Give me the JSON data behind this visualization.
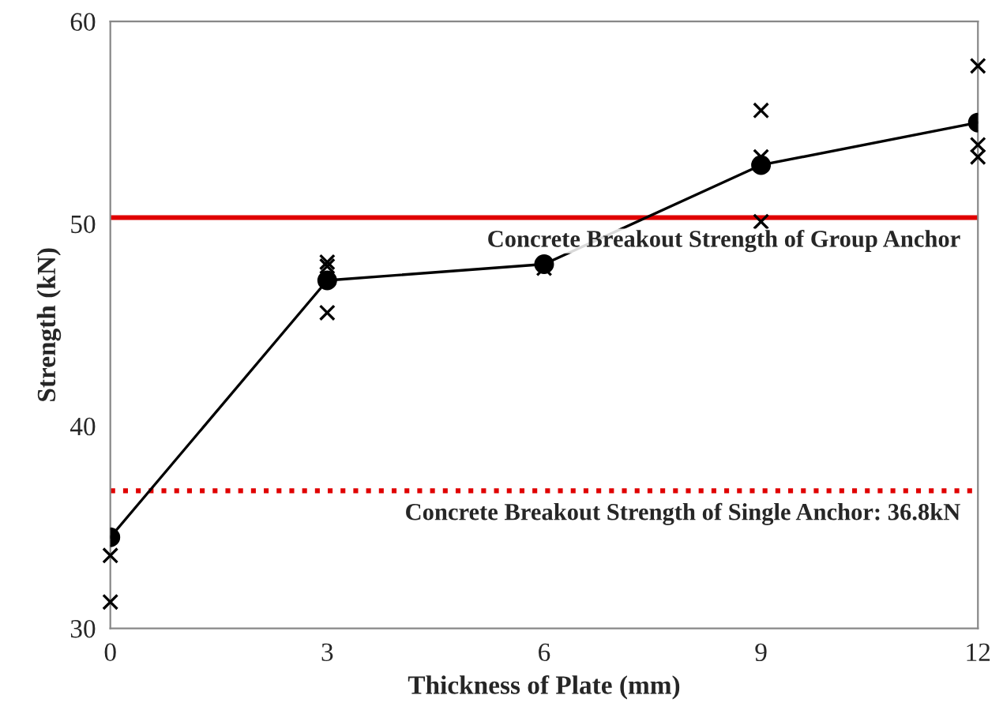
{
  "chart_data": {
    "type": "line",
    "xlabel": "Thickness of Plate (mm)",
    "ylabel": "Strength (kN)",
    "xlim": [
      0,
      12
    ],
    "xticks": [
      0,
      3,
      6,
      9,
      12
    ],
    "ylim": [
      30,
      60
    ],
    "yticks": [
      30,
      40,
      50,
      60
    ],
    "grid": false,
    "legend": false,
    "series": [
      {
        "color": "#000000",
        "marker": "circle",
        "line_style": "solid",
        "x": [
          0,
          3,
          6,
          9,
          12
        ],
        "values": [
          34.5,
          47.2,
          48.0,
          52.9,
          55.0
        ]
      },
      {
        "type": "scatter",
        "color": "#000000",
        "marker": "cross",
        "x": [
          0,
          0,
          3,
          3,
          3,
          6,
          9,
          9,
          9,
          12,
          12,
          12
        ],
        "values": [
          33.6,
          31.3,
          48.1,
          47.9,
          45.6,
          47.8,
          55.6,
          53.3,
          50.1,
          57.8,
          53.9,
          53.3
        ]
      }
    ],
    "ref_lines": [
      {
        "axis": "y",
        "value": 50.3,
        "label": "Concrete Breakout Strength of Group Anchor",
        "color": "#e00000",
        "line_style": "solid"
      },
      {
        "axis": "y",
        "value": 36.8,
        "label": "Concrete Breakout Strength of Single Anchor: 36.8kN",
        "color": "#e00000",
        "line_style": "dotted"
      }
    ]
  }
}
